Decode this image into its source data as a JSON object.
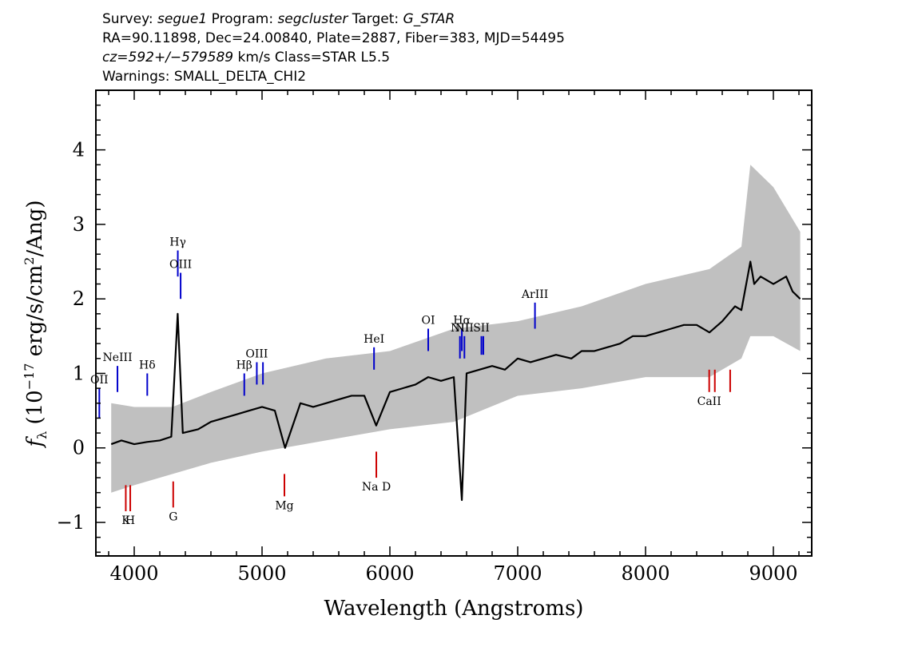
{
  "header": {
    "line1": {
      "survey_label": "Survey: ",
      "survey": "segue1",
      "program_label": " Program: ",
      "program": "segcluster",
      "target_label": " Target: ",
      "target": "G_STAR"
    },
    "line2": "RA=90.11898, Dec=24.00840, Plate=2887, Fiber=383, MJD=54495",
    "line3": {
      "cz": "cz=592+/−579589",
      "rest": " km/s Class=STAR L5.5"
    },
    "line4": "Warnings: SMALL_DELTA_CHI2"
  },
  "colors": {
    "flux": "#000000",
    "error": "#c0c0c0",
    "emission": "#0000cc",
    "absorption": "#cc0000"
  },
  "chart_data": {
    "type": "line",
    "xlabel": "Wavelength (Angstroms)",
    "ylabel_main": "f",
    "ylabel_sub": "λ",
    "ylabel_rest": " (10",
    "ylabel_exp": "−17",
    "ylabel_units": " erg/s/cm",
    "ylabel_sq": "2",
    "ylabel_tail": "/Ang)",
    "xlim": [
      3700,
      9300
    ],
    "ylim": [
      -1.45,
      4.8
    ],
    "xticks": [
      4000,
      5000,
      6000,
      7000,
      8000,
      9000
    ],
    "yticks": [
      -1,
      0,
      1,
      2,
      3,
      4
    ],
    "x_tick_labels": [
      "4000",
      "5000",
      "6000",
      "7000",
      "8000",
      "9000"
    ],
    "y_tick_labels": [
      "−1",
      "0",
      "1",
      "2",
      "3",
      "4"
    ],
    "series": [
      {
        "role": "flux",
        "x": [
          3820,
          3900,
          4000,
          4100,
          4200,
          4290,
          4340,
          4380,
          4500,
          4600,
          4700,
          4800,
          4900,
          5000,
          5100,
          5180,
          5300,
          5400,
          5500,
          5600,
          5700,
          5800,
          5893,
          6000,
          6100,
          6200,
          6300,
          6400,
          6500,
          6563,
          6600,
          6700,
          6800,
          6900,
          7000,
          7100,
          7200,
          7300,
          7420,
          7500,
          7600,
          7700,
          7800,
          7900,
          8000,
          8100,
          8200,
          8300,
          8400,
          8500,
          8600,
          8700,
          8750,
          8820,
          8850,
          8900,
          9000,
          9100,
          9150,
          9210
        ],
        "y": [
          0.05,
          0.1,
          0.05,
          0.08,
          0.1,
          0.15,
          1.8,
          0.2,
          0.25,
          0.35,
          0.4,
          0.45,
          0.5,
          0.55,
          0.5,
          0.0,
          0.6,
          0.55,
          0.6,
          0.65,
          0.7,
          0.7,
          0.3,
          0.75,
          0.8,
          0.85,
          0.95,
          0.9,
          0.95,
          -0.7,
          1.0,
          1.05,
          1.1,
          1.05,
          1.2,
          1.15,
          1.2,
          1.25,
          1.2,
          1.3,
          1.3,
          1.35,
          1.4,
          1.5,
          1.5,
          1.55,
          1.6,
          1.65,
          1.65,
          1.55,
          1.7,
          1.9,
          1.85,
          2.5,
          2.2,
          2.3,
          2.2,
          2.3,
          2.1,
          2.0
        ]
      },
      {
        "role": "error_envelope",
        "x": [
          3820,
          4000,
          4300,
          4600,
          5000,
          5500,
          6000,
          6500,
          7000,
          7500,
          8000,
          8500,
          8750,
          8820,
          9000,
          9210
        ],
        "y_low": [
          -0.6,
          -0.5,
          -0.35,
          -0.2,
          -0.05,
          0.1,
          0.25,
          0.35,
          0.7,
          0.8,
          0.95,
          0.95,
          1.2,
          1.5,
          1.5,
          1.3
        ],
        "y_high": [
          0.6,
          0.55,
          0.55,
          0.75,
          1.0,
          1.2,
          1.3,
          1.6,
          1.7,
          1.9,
          2.2,
          2.4,
          2.7,
          3.8,
          3.5,
          2.9
        ]
      }
    ],
    "emission_lines": [
      {
        "label": "OII",
        "x": 3727,
        "y0": 0.4,
        "y1": 0.8
      },
      {
        "label": "NeIII",
        "x": 3869,
        "y0": 0.75,
        "y1": 1.1
      },
      {
        "label": "Hδ",
        "x": 4102,
        "y0": 0.7,
        "y1": 1.0
      },
      {
        "label": "Hγ",
        "x": 4341,
        "y0": 2.3,
        "y1": 2.65
      },
      {
        "label": "OIII",
        "x": 4363,
        "y0": 2.0,
        "y1": 2.35
      },
      {
        "label": "Hβ",
        "x": 4861,
        "y0": 0.7,
        "y1": 1.0
      },
      {
        "label": "OIII",
        "x": 4959,
        "y0": 0.85,
        "y1": 1.15
      },
      {
        "label": "",
        "x": 5007,
        "y0": 0.85,
        "y1": 1.15
      },
      {
        "label": "HeI",
        "x": 5876,
        "y0": 1.05,
        "y1": 1.35
      },
      {
        "label": "OI",
        "x": 6300,
        "y0": 1.3,
        "y1": 1.6
      },
      {
        "label": "NII",
        "x": 6548,
        "y0": 1.2,
        "y1": 1.5
      },
      {
        "label": "Hα",
        "x": 6563,
        "y0": 1.3,
        "y1": 1.6
      },
      {
        "label": "NII",
        "x": 6583,
        "y0": 1.2,
        "y1": 1.5
      },
      {
        "label": "SII",
        "x": 6716,
        "y0": 1.25,
        "y1": 1.5
      },
      {
        "label": "",
        "x": 6731,
        "y0": 1.25,
        "y1": 1.5
      },
      {
        "label": "ArIII",
        "x": 7135,
        "y0": 1.6,
        "y1": 1.95
      }
    ],
    "absorption_lines": [
      {
        "label": "K",
        "x": 3934,
        "y0": -0.5,
        "y1": -0.85
      },
      {
        "label": "H",
        "x": 3969,
        "y0": -0.5,
        "y1": -0.85
      },
      {
        "label": "G",
        "x": 4305,
        "y0": -0.45,
        "y1": -0.8
      },
      {
        "label": "Mg",
        "x": 5175,
        "y0": -0.35,
        "y1": -0.65
      },
      {
        "label": "Na D",
        "x": 5894,
        "y0": -0.05,
        "y1": -0.4
      },
      {
        "label": "CaII",
        "x": 8498,
        "y0": 1.05,
        "y1": 0.75
      },
      {
        "label": "",
        "x": 8542,
        "y0": 1.05,
        "y1": 0.75
      },
      {
        "label": "",
        "x": 8662,
        "y0": 1.05,
        "y1": 0.75
      }
    ]
  }
}
